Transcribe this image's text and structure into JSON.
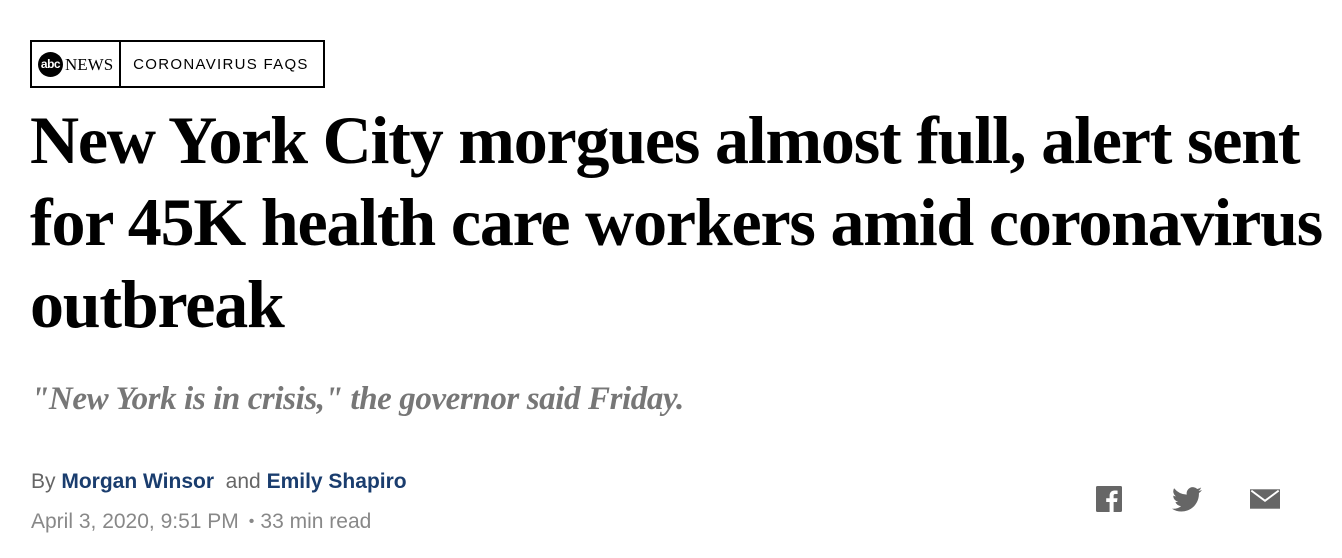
{
  "brand": {
    "logo_abc": "abc",
    "logo_news": "NEWS",
    "section_label": "CORONAVIRUS FAQS"
  },
  "article": {
    "headline": "New York City morgues almost full, alert sent for 45K health care workers amid coronavirus outbreak",
    "subheadline": "\"New York is in crisis,\" the governor said Friday.",
    "byline": {
      "prefix": "By",
      "author_1": "Morgan Winsor",
      "conjunction": "and",
      "author_2": "Emily Shapiro"
    },
    "date": "April 3, 2020, 9:51 PM",
    "separator": "•",
    "read_time": "33 min read"
  },
  "share": {
    "icons": [
      "facebook-icon",
      "twitter-icon",
      "email-icon"
    ]
  },
  "colors": {
    "author_link": "#1a3d6e",
    "subhead": "#777777",
    "meta": "#888888",
    "share_icon": "#666666"
  }
}
